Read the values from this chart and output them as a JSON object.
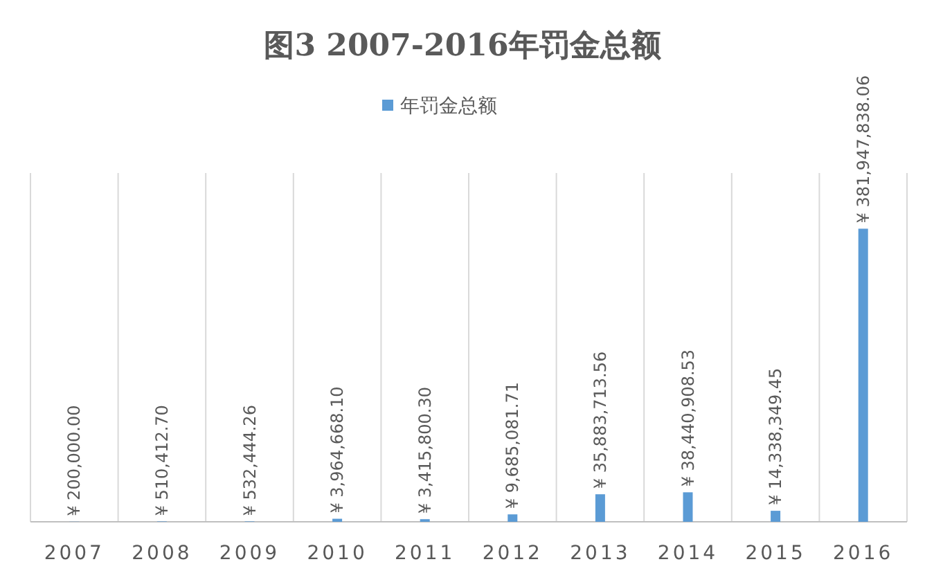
{
  "chart_data": {
    "type": "bar",
    "title": "图3 2007-2016年罚金总额",
    "categories": [
      "2007",
      "2008",
      "2009",
      "2010",
      "2011",
      "2012",
      "2013",
      "2014",
      "2015",
      "2016"
    ],
    "series": [
      {
        "name": "年罚金总额",
        "color": "#5b9bd5",
        "values": [
          200000.0,
          510412.7,
          532444.26,
          3964668.1,
          3415800.3,
          9685081.71,
          35883713.56,
          38440908.53,
          14338349.45,
          381947838.06
        ],
        "value_labels": [
          "¥ 200,000.00",
          "¥ 510,412.70",
          "¥ 532,444.26",
          "¥ 3,964,668.10",
          "¥ 3,415,800.30",
          "¥ 9,685,081.71",
          "¥ 35,883,713.56",
          "¥ 38,440,908.53",
          "¥ 14,338,349.45",
          "¥ 381,947,838.06"
        ]
      }
    ],
    "legend": "top",
    "grid": "x"
  }
}
